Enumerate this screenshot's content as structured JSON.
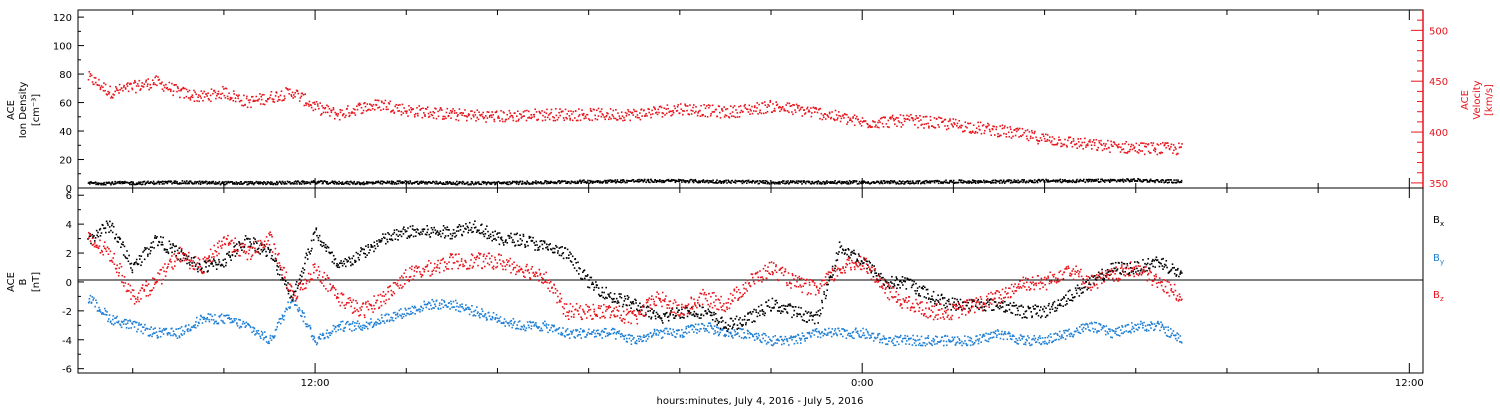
{
  "figure": {
    "xlabel": "hours:minutes, July  4, 2016 - July  5, 2016",
    "x_tick_labels": [
      "12:00",
      "0:00",
      "12:00"
    ]
  },
  "colors": {
    "black": "#000000",
    "red": "#e8141c",
    "blue": "#1f7fd4"
  },
  "panel_top": {
    "left_axis_label": {
      "line1": "ACE",
      "line2": "Ion Density",
      "line3": "[cm⁻³]"
    },
    "right_axis_label": {
      "line1": "ACE",
      "line2": "Velocity",
      "line3": "[km/s]"
    },
    "left_ticks": [
      "0",
      "20",
      "40",
      "60",
      "80",
      "100",
      "120"
    ],
    "right_ticks": [
      "350",
      "400",
      "450",
      "500"
    ]
  },
  "panel_bottom": {
    "left_axis_label": {
      "line1": "ACE",
      "line2": "B",
      "line3": "[nT]"
    },
    "ticks": [
      "-6",
      "-4",
      "-2",
      "0",
      "2",
      "4",
      "6"
    ],
    "legend": [
      {
        "label": "B",
        "sub": "x",
        "color": "#000000"
      },
      {
        "label": "B",
        "sub": "y",
        "color": "#1f7fd4"
      },
      {
        "label": "B",
        "sub": "z",
        "color": "#e8141c"
      }
    ]
  },
  "chart_data": [
    {
      "type": "scatter",
      "title": "",
      "x_unit": "hours since 2016-07-04 00:00 UT",
      "xlim": [
        6.8,
        36.3
      ],
      "series": [
        {
          "name": "Ion Density",
          "axis": "left",
          "ylim": [
            0,
            125
          ],
          "color": "#000000",
          "x": [
            7,
            8,
            9,
            10,
            11,
            12,
            13,
            14,
            15,
            16,
            17,
            18,
            19,
            20,
            21,
            22,
            23,
            24,
            25,
            26,
            27,
            28,
            29,
            30,
            31
          ],
          "y": [
            4,
            4,
            4.5,
            4,
            4,
            4.5,
            4,
            4.5,
            4,
            4,
            4.5,
            5,
            5.5,
            5.5,
            5,
            4.5,
            4.5,
            4.5,
            4.5,
            5,
            5,
            5.5,
            5.5,
            6,
            5
          ]
        },
        {
          "name": "Velocity",
          "axis": "right",
          "ylim": [
            345,
            520
          ],
          "color": "#e8141c",
          "x": [
            7,
            7.5,
            8,
            8.5,
            9,
            9.5,
            10,
            10.5,
            11,
            11.5,
            12,
            12.5,
            13,
            13.5,
            14,
            15,
            16,
            17,
            18,
            19,
            20,
            21,
            22,
            23,
            24,
            25,
            26,
            27,
            28,
            29,
            30,
            31
          ],
          "y": [
            455,
            440,
            445,
            450,
            440,
            435,
            440,
            430,
            435,
            440,
            425,
            418,
            425,
            428,
            422,
            418,
            416,
            418,
            418,
            418,
            424,
            420,
            426,
            420,
            410,
            412,
            408,
            402,
            394,
            388,
            385,
            384
          ]
        }
      ]
    },
    {
      "type": "scatter",
      "title": "",
      "x_unit": "hours since 2016-07-04 00:00 UT",
      "xlim": [
        6.8,
        36.3
      ],
      "ylim": [
        -6.3,
        6.5
      ],
      "series": [
        {
          "name": "Bx",
          "color": "#000000",
          "x": [
            7,
            7.5,
            8,
            8.5,
            9,
            9.5,
            10,
            10.5,
            11,
            11.5,
            12,
            12.5,
            13,
            13.5,
            14,
            14.5,
            15,
            15.5,
            16,
            16.5,
            17,
            17.5,
            18,
            18.5,
            19,
            19.5,
            20,
            20.5,
            21,
            21.5,
            22,
            22.5,
            23,
            23.5,
            24,
            24.5,
            25,
            25.5,
            26,
            26.5,
            27,
            27.5,
            28,
            28.5,
            29,
            29.5,
            30,
            30.5,
            31
          ],
          "y": [
            3,
            4,
            1,
            3,
            2,
            1,
            1.5,
            3,
            2,
            -1,
            3.5,
            1,
            2,
            3,
            3.5,
            3.5,
            3.5,
            4,
            3,
            3,
            2.5,
            2,
            0,
            -1,
            -1.5,
            -2.5,
            -2,
            -2,
            -3,
            -2.5,
            -1.5,
            -2,
            -2.5,
            2.5,
            1.5,
            0,
            0,
            -1,
            -1.5,
            -1.5,
            -1.5,
            -2,
            -2,
            -1,
            0,
            1,
            1,
            1.5,
            0.5
          ]
        },
        {
          "name": "By",
          "color": "#1f7fd4",
          "x": [
            7,
            7.5,
            8,
            8.5,
            9,
            9.5,
            10,
            10.5,
            11,
            11.5,
            12,
            12.5,
            13,
            13.5,
            14,
            14.5,
            15,
            15.5,
            16,
            16.5,
            17,
            17.5,
            18,
            18.5,
            19,
            19.5,
            20,
            20.5,
            21,
            21.5,
            22,
            22.5,
            23,
            23.5,
            24,
            24.5,
            25,
            25.5,
            26,
            26.5,
            27,
            27.5,
            28,
            28.5,
            29,
            29.5,
            30,
            30.5,
            31
          ],
          "y": [
            -1,
            -2.5,
            -3,
            -3.5,
            -3.5,
            -2.5,
            -2.5,
            -3,
            -4,
            -1,
            -4,
            -3,
            -3,
            -2.5,
            -2,
            -1.5,
            -1.5,
            -2,
            -2.5,
            -3,
            -3,
            -3.5,
            -3.5,
            -3.5,
            -4,
            -3.5,
            -3.5,
            -3,
            -3.5,
            -3.5,
            -4,
            -4,
            -3.5,
            -3.5,
            -3.5,
            -4,
            -4,
            -4,
            -4,
            -4,
            -3.5,
            -4,
            -4,
            -3.5,
            -3,
            -3.5,
            -3,
            -3,
            -4
          ]
        },
        {
          "name": "Bz",
          "color": "#e8141c",
          "x": [
            7,
            7.5,
            8,
            8.5,
            9,
            9.5,
            10,
            10.5,
            11,
            11.5,
            12,
            12.5,
            13,
            13.5,
            14,
            14.5,
            15,
            15.5,
            16,
            16.5,
            17,
            17.5,
            18,
            18.5,
            19,
            19.5,
            20,
            20.5,
            21,
            21.5,
            22,
            22.5,
            23,
            23.5,
            24,
            24.5,
            25,
            25.5,
            26,
            26.5,
            27,
            27.5,
            28,
            28.5,
            29,
            29.5,
            30,
            30.5,
            31
          ],
          "y": [
            3,
            2,
            -1,
            0,
            2,
            1,
            3,
            2,
            3,
            -1,
            1,
            -1,
            -2,
            -1,
            0.5,
            1,
            1.5,
            1.5,
            1.5,
            1,
            0.5,
            -2,
            -2,
            -2,
            -2.5,
            -1,
            -2,
            -1,
            -1.5,
            0,
            1,
            0,
            -0.5,
            1,
            1.5,
            -0.5,
            -1.5,
            -2,
            -2,
            -1.5,
            -1,
            0,
            0,
            1,
            0,
            0.5,
            1,
            0,
            -1
          ]
        }
      ]
    }
  ]
}
